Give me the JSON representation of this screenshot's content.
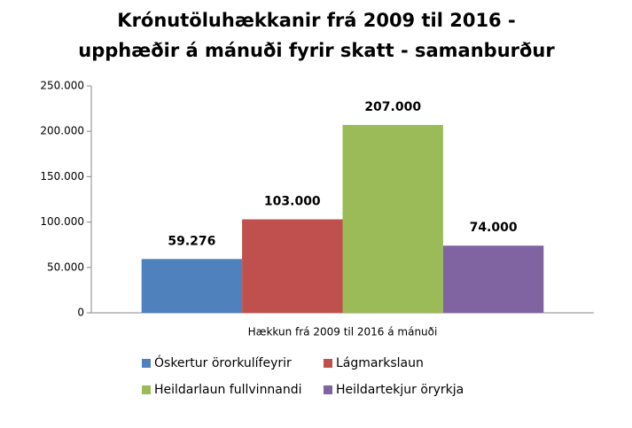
{
  "chart_data": {
    "type": "bar",
    "title": [
      "Krónutöluhækkanir frá 2009 til 2016  -",
      "upphæðir á mánuði fyrir skatt - samanburður"
    ],
    "categories": [
      "Hækkun frá 2009 til 2016 á mánuði"
    ],
    "series": [
      {
        "name": "Óskertur örorkulífeyrir",
        "color": "#4f81bd",
        "values": [
          59276
        ],
        "value_labels": [
          "59.276"
        ]
      },
      {
        "name": "Lágmarkslaun",
        "color": "#c0504d",
        "values": [
          103000
        ],
        "value_labels": [
          "103.000"
        ]
      },
      {
        "name": "Heildarlaun fullvinnandi",
        "color": "#9bbb59",
        "values": [
          207000
        ],
        "value_labels": [
          "207.000"
        ]
      },
      {
        "name": "Heildartekjur öryrkja",
        "color": "#8064a2",
        "values": [
          74000
        ],
        "value_labels": [
          "74.000"
        ]
      }
    ],
    "ylim": [
      0,
      250000
    ],
    "yticks": [
      0,
      {
        "value": 50000,
        "label": "50.000"
      },
      {
        "value": 100000,
        "label": "100.000"
      },
      {
        "value": 150000,
        "label": "150.000"
      },
      {
        "value": 200000,
        "label": "200.000"
      },
      {
        "value": 250000,
        "label": "250.000"
      }
    ],
    "grid": false,
    "legend": "bottom"
  }
}
